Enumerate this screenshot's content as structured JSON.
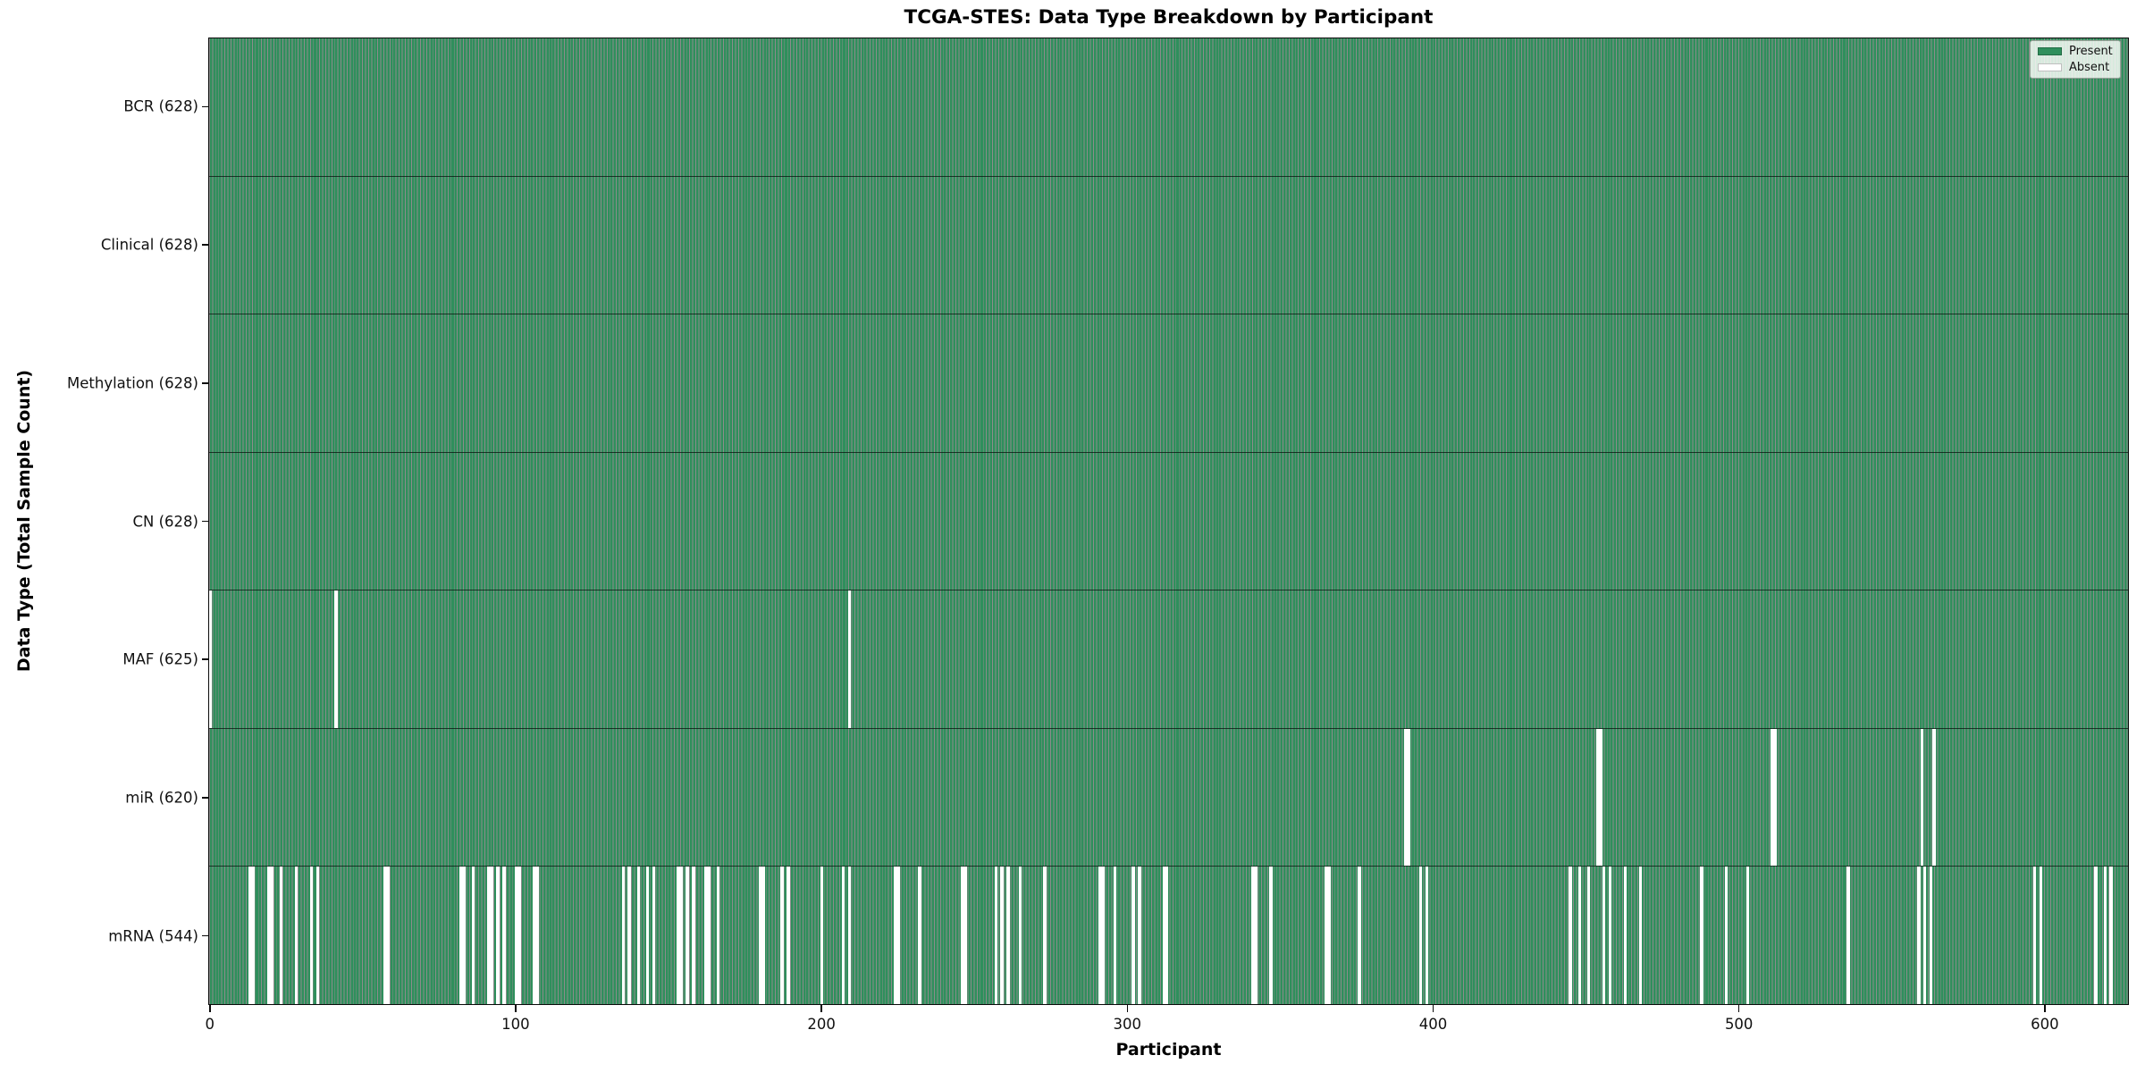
{
  "figure": {
    "title": "TCGA-STES: Data Type Breakdown by Participant",
    "xlabel": "Participant",
    "ylabel": "Data Type (Total Sample Count)"
  },
  "legend": {
    "entries": [
      {
        "label": "Present",
        "color": "#2f8f5c"
      },
      {
        "label": "Absent",
        "color": "#ffffff"
      }
    ]
  },
  "colors": {
    "present_fill": "#2f8f5c",
    "bar_edge": "rgba(0,0,0,0.45)",
    "absent_fill": "#ffffff",
    "plot_border": "#0a0a0a",
    "background": "#ffffff"
  },
  "chart_data": {
    "type": "heatmap",
    "title": "TCGA-STES: Data Type Breakdown by Participant",
    "xlabel": "Participant",
    "ylabel": "Data Type (Total Sample Count)",
    "legend": [
      "Present",
      "Absent"
    ],
    "legend_position": "upper right",
    "grid": false,
    "total_participants": 628,
    "x_ticks": [
      0,
      100,
      200,
      300,
      400,
      500,
      600
    ],
    "x_range": [
      0,
      628
    ],
    "rows": [
      {
        "name": "BCR",
        "label": "BCR (628)",
        "count": 628,
        "absent": []
      },
      {
        "name": "Clinical",
        "label": "Clinical (628)",
        "count": 628,
        "absent": []
      },
      {
        "name": "Methylation",
        "label": "Methylation (628)",
        "count": 628,
        "absent": []
      },
      {
        "name": "CN",
        "label": "CN (628)",
        "count": 628,
        "absent": []
      },
      {
        "name": "MAF",
        "label": "MAF (625)",
        "count": 625,
        "absent": [
          0,
          41,
          209
        ]
      },
      {
        "name": "miR",
        "label": "miR (620)",
        "count": 620,
        "absent": [
          391,
          392,
          454,
          455,
          511,
          512,
          560,
          564
        ]
      },
      {
        "name": "mRNA",
        "label": "mRNA (544)",
        "count": 544,
        "absent": [
          13,
          14,
          19,
          20,
          23,
          28,
          33,
          35,
          57,
          58,
          82,
          83,
          86,
          91,
          92,
          94,
          96,
          100,
          101,
          106,
          107,
          135,
          137,
          140,
          143,
          145,
          153,
          154,
          156,
          158,
          162,
          163,
          166,
          180,
          181,
          187,
          189,
          200,
          207,
          209,
          224,
          225,
          232,
          246,
          247,
          257,
          259,
          261,
          265,
          273,
          291,
          292,
          296,
          302,
          304,
          312,
          313,
          341,
          342,
          347,
          365,
          366,
          376,
          396,
          398,
          445,
          448,
          451,
          456,
          458,
          463,
          468,
          488,
          496,
          503,
          536,
          559,
          561,
          563,
          597,
          599,
          617,
          620,
          622
        ]
      }
    ]
  }
}
